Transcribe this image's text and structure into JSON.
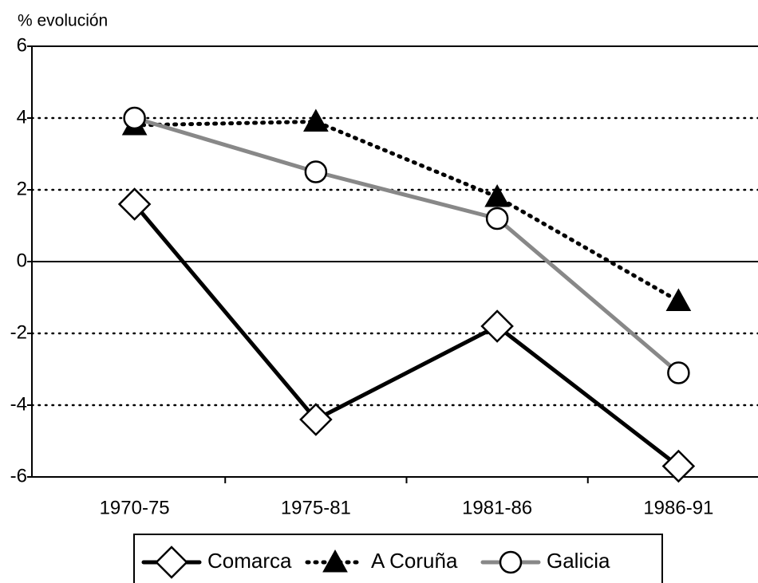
{
  "chart_data": {
    "type": "line",
    "y_label": "% evolución",
    "categories": [
      "1970-75",
      "1975-81",
      "1981-86",
      "1986-91"
    ],
    "series": [
      {
        "name": "Comarca",
        "color": "#000000",
        "values": [
          1.6,
          -4.4,
          -1.8,
          -5.7
        ]
      },
      {
        "name": "A Coruña",
        "color": "#000000",
        "values": [
          3.8,
          3.9,
          1.8,
          -1.1
        ]
      },
      {
        "name": "Galicia",
        "color": "#888888",
        "values": [
          4.0,
          2.5,
          1.2,
          -3.1
        ]
      }
    ],
    "ylim": [
      -6,
      6
    ],
    "yticks": [
      -6,
      -4,
      -2,
      0,
      2,
      4,
      6
    ],
    "grid": true,
    "legend": "bottom"
  }
}
